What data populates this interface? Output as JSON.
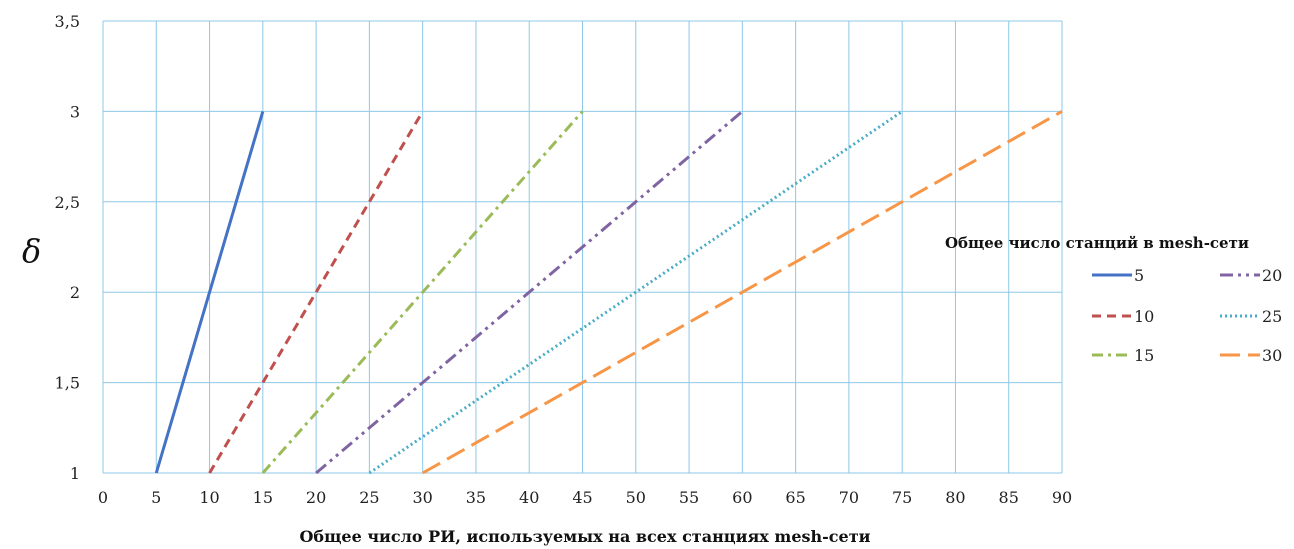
{
  "chart_data": {
    "type": "line",
    "xlabel": "Общее число РИ, используемых на всех станциях mesh-сети",
    "ylabel": "δ",
    "xlim": [
      0,
      90
    ],
    "ylim": [
      1,
      3.5
    ],
    "x_ticks": [
      0,
      5,
      10,
      15,
      20,
      25,
      30,
      35,
      40,
      45,
      50,
      55,
      60,
      65,
      70,
      75,
      80,
      85,
      90
    ],
    "y_ticks": [
      1,
      1.5,
      2,
      2.5,
      3,
      3.5
    ],
    "y_tick_labels": [
      "1",
      "1,5",
      "2",
      "2,5",
      "3",
      "3,5"
    ],
    "grid": "vertical and horizontal",
    "legend": {
      "title": "Общее число станций в mesh-сети",
      "placement": "right"
    },
    "series": [
      {
        "name": "5",
        "color": "#4472C4",
        "dash": "solid",
        "x": [
          5,
          15
        ],
        "y": [
          1,
          3
        ]
      },
      {
        "name": "10",
        "color": "#C0504D",
        "dash": "dash",
        "x": [
          10,
          30
        ],
        "y": [
          1,
          3
        ]
      },
      {
        "name": "15",
        "color": "#9BBB59",
        "dash": "dash-dot",
        "x": [
          15,
          45
        ],
        "y": [
          1,
          3
        ]
      },
      {
        "name": "20",
        "color": "#8064A2",
        "dash": "dash-dot-dot",
        "x": [
          20,
          60
        ],
        "y": [
          1,
          3
        ]
      },
      {
        "name": "25",
        "color": "#4BACC6",
        "dash": "dot",
        "x": [
          25,
          75
        ],
        "y": [
          1,
          3
        ]
      },
      {
        "name": "30",
        "color": "#F79646",
        "dash": "long-dash",
        "x": [
          30,
          90
        ],
        "y": [
          1,
          3
        ]
      }
    ]
  }
}
